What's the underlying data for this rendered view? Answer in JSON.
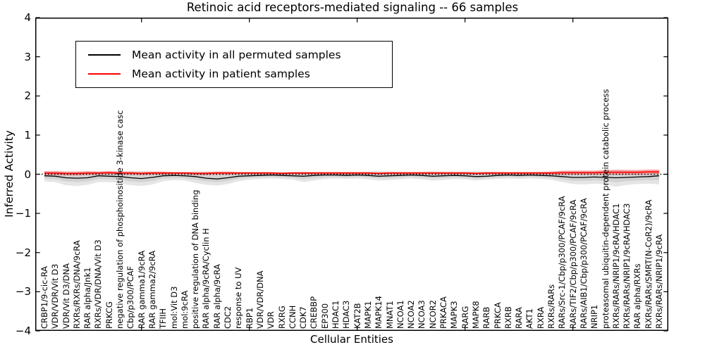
{
  "title": "Retinoic acid receptors-mediated signaling -- 66 samples",
  "axes": {
    "ylabel": "Inferred Activity",
    "xlabel": "Cellular Entities",
    "yticks": [
      4,
      3,
      2,
      1,
      0,
      -1,
      -2,
      -3,
      -4
    ],
    "ytick_labels": [
      "4",
      "3",
      "2",
      "1",
      "0",
      "−1",
      "−2",
      "−3",
      "−4"
    ]
  },
  "legend": {
    "entries": [
      {
        "label": "Mean activity in all permuted samples",
        "color": "#000000"
      },
      {
        "label": "Mean activity in patient samples",
        "color": "#ff0000"
      }
    ]
  },
  "chart_data": {
    "type": "line",
    "title": "Retinoic acid receptors-mediated signaling -- 66 samples",
    "xlabel": "Cellular Entities",
    "ylabel": "Inferred Activity",
    "ylim": [
      -4,
      4
    ],
    "grid": false,
    "legend_position": "upper left",
    "xticks": {
      "start": 9,
      "step": 10
    },
    "zero_line": {
      "y": 0,
      "style": "dotted",
      "color": "#000000"
    },
    "categories": [
      "CRBP1/9-cic-RA",
      "VDR/VDR/Vit D3",
      "VDR/Vit D3/DNA",
      "RXRs/RXRs/DNA/9cRA",
      "RAR alpha/Jnk1",
      "RXRs/VDR/DNA/Vit D3",
      "PRKCG",
      "negative regulation of phosphoinositide 3-kinase casc",
      "Cbp/p300/PCAF",
      "RAR gamma1/9cRA",
      "RAR gamma2/9cRA",
      "TFIIH",
      "mol:Vit D3",
      "mol:9cRA",
      "positive regulation of DNA binding",
      "RAR alpha/9cRA/Cyclin H",
      "RAR alpha/9cRA",
      "CDC2",
      "response to UV",
      "RBP1",
      "VDR/VDR/DNA",
      "VDR",
      "RXRG",
      "CCNH",
      "CDK7",
      "CREBBP",
      "EP300",
      "HDAC1",
      "HDAC3",
      "KAT2B",
      "MAPK1",
      "MAPK14",
      "MNAT1",
      "NCOA1",
      "NCOA2",
      "NCOA3",
      "NCOR2",
      "PRKACA",
      "MAPK3",
      "RARG",
      "MAPK8",
      "RARB",
      "PRKCA",
      "RXRB",
      "RARA",
      "AKT1",
      "RXRA",
      "RXRs/RARs",
      "RARs/Src-1/Cbp/p300/PCAF/9cRA",
      "RARs/TIF2/Cbp/p300/PCAF/9cRA",
      "RARs/AIB1/Cbp/p300/PCAF/9cRA",
      "NRIP1",
      "proteasomal ubiquitin-dependent protein catabolic process",
      "RXRs/RARs/NRIP1/9cRA/HDAC1",
      "RXRs/RARs/NRIP1/9cRA/HDAC3",
      "RAR alpha/RXRs",
      "RXRs/RARs/SMRT(N-CoR2)/9cRA",
      "RXRs/RARs/NRIP1/9cRA"
    ],
    "series": [
      {
        "name": "Mean activity in all permuted samples",
        "color": "#000000",
        "values": [
          -0.04,
          -0.05,
          -0.09,
          -0.1,
          -0.09,
          -0.04,
          -0.05,
          -0.06,
          -0.09,
          -0.11,
          -0.08,
          -0.04,
          -0.03,
          -0.04,
          -0.06,
          -0.1,
          -0.12,
          -0.09,
          -0.05,
          -0.04,
          -0.03,
          -0.02,
          -0.03,
          -0.04,
          -0.05,
          -0.03,
          -0.02,
          -0.02,
          -0.03,
          -0.02,
          -0.03,
          -0.05,
          -0.04,
          -0.03,
          -0.02,
          -0.03,
          -0.05,
          -0.04,
          -0.03,
          -0.04,
          -0.06,
          -0.05,
          -0.03,
          -0.02,
          -0.03,
          -0.02,
          -0.03,
          -0.04,
          -0.06,
          -0.08,
          -0.08,
          -0.07,
          -0.08,
          -0.09,
          -0.08,
          -0.07,
          -0.06,
          -0.04
        ]
      },
      {
        "name": "Mean activity in patient samples",
        "color": "#ff0000",
        "values": [
          0.03,
          0.03,
          0.02,
          0.02,
          0.03,
          0.03,
          0.04,
          0.03,
          0.03,
          0.02,
          0.03,
          0.03,
          0.03,
          0.03,
          0.02,
          0.02,
          0.03,
          0.03,
          0.03,
          0.03,
          0.03,
          0.03,
          0.02,
          0.03,
          0.03,
          0.03,
          0.03,
          0.03,
          0.03,
          0.03,
          0.03,
          0.02,
          0.03,
          0.03,
          0.03,
          0.03,
          0.03,
          0.03,
          0.03,
          0.03,
          0.02,
          0.03,
          0.03,
          0.03,
          0.03,
          0.03,
          0.03,
          0.03,
          0.04,
          0.04,
          0.04,
          0.04,
          0.05,
          0.05,
          0.05,
          0.05,
          0.06,
          0.06
        ]
      }
    ],
    "permuted_band": {
      "fill_outer": "#e5e5e5",
      "fill_inner": "#d2d2d2",
      "lower": [
        -0.18,
        -0.2,
        -0.28,
        -0.3,
        -0.27,
        -0.2,
        -0.2,
        -0.22,
        -0.28,
        -0.3,
        -0.26,
        -0.18,
        -0.15,
        -0.16,
        -0.22,
        -0.27,
        -0.29,
        -0.25,
        -0.18,
        -0.14,
        -0.12,
        -0.11,
        -0.12,
        -0.14,
        -0.2,
        -0.16,
        -0.12,
        -0.11,
        -0.12,
        -0.11,
        -0.13,
        -0.16,
        -0.15,
        -0.13,
        -0.11,
        -0.13,
        -0.16,
        -0.15,
        -0.12,
        -0.13,
        -0.16,
        -0.14,
        -0.12,
        -0.11,
        -0.12,
        -0.11,
        -0.12,
        -0.14,
        -0.2,
        -0.25,
        -0.26,
        -0.24,
        -0.26,
        -0.32,
        -0.27,
        -0.25,
        -0.24,
        -0.26
      ],
      "upper": [
        0.07,
        0.07,
        0.06,
        0.06,
        0.06,
        0.07,
        0.07,
        0.07,
        0.08,
        0.08,
        0.07,
        0.07,
        0.06,
        0.06,
        0.07,
        0.07,
        0.07,
        0.07,
        0.06,
        0.06,
        0.06,
        0.06,
        0.06,
        0.06,
        0.07,
        0.06,
        0.06,
        0.06,
        0.06,
        0.06,
        0.07,
        0.08,
        0.07,
        0.07,
        0.06,
        0.07,
        0.08,
        0.07,
        0.07,
        0.07,
        0.08,
        0.07,
        0.07,
        0.06,
        0.07,
        0.06,
        0.07,
        0.07,
        0.08,
        0.09,
        0.09,
        0.09,
        0.09,
        0.12,
        0.1,
        0.09,
        0.09,
        0.1
      ]
    },
    "patient_band": {
      "fill": "rgba(255,60,60,0.42)",
      "half_width": [
        0.05,
        0.05,
        0.05,
        0.05,
        0.05,
        0.04,
        0.04,
        0.04,
        0.04,
        0.04,
        0.04,
        0.04,
        0.03,
        0.03,
        0.04,
        0.04,
        0.04,
        0.04,
        0.03,
        0.03,
        0.03,
        0.03,
        0.03,
        0.03,
        0.03,
        0.03,
        0.03,
        0.03,
        0.03,
        0.03,
        0.03,
        0.03,
        0.03,
        0.03,
        0.03,
        0.03,
        0.03,
        0.03,
        0.03,
        0.03,
        0.03,
        0.03,
        0.03,
        0.03,
        0.03,
        0.03,
        0.03,
        0.04,
        0.05,
        0.05,
        0.05,
        0.05,
        0.06,
        0.06,
        0.06,
        0.06,
        0.06,
        0.06
      ]
    }
  }
}
